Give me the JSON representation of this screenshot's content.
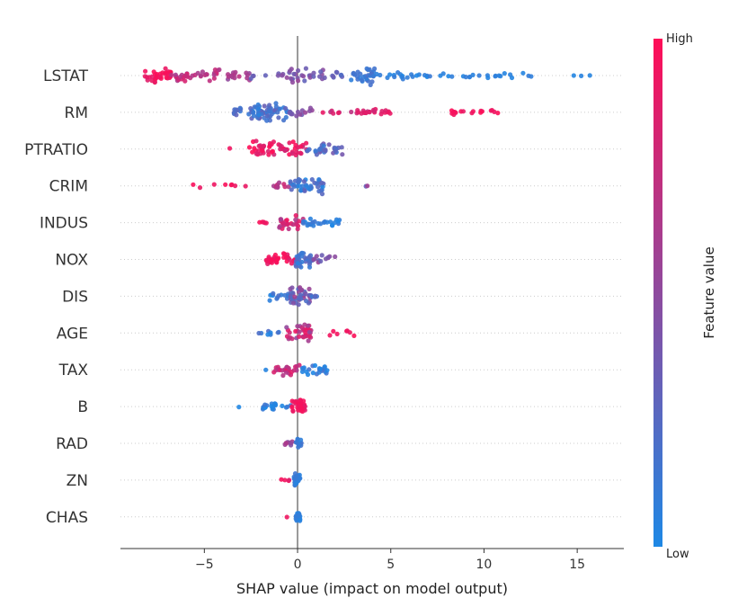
{
  "chart_data": {
    "type": "scatter",
    "subtype": "beeswarm",
    "title": "",
    "xlabel": "SHAP value (impact on model output)",
    "ylabel": "",
    "xlim": [
      -9.5,
      17.5
    ],
    "xticks": [
      -5,
      0,
      5,
      10,
      15
    ],
    "zero_line": true,
    "grid": false,
    "colorbar": {
      "title": "Feature value",
      "high_label": "High",
      "low_label": "Low",
      "low_color": "#1e88e5",
      "high_color": "#ff0d57"
    },
    "features": [
      {
        "name": "LSTAT",
        "clusters": [
          {
            "x": [
              -8.2,
              -6.8
            ],
            "n": 34,
            "v": [
              0.85,
              1.0
            ],
            "spread": 1.0
          },
          {
            "x": [
              -6.8,
              -4.0
            ],
            "n": 36,
            "v": [
              0.6,
              0.85
            ],
            "spread": 0.8
          },
          {
            "x": [
              -4.0,
              -2.5
            ],
            "n": 16,
            "v": [
              0.5,
              0.7
            ],
            "spread": 0.6
          },
          {
            "x": [
              -2.5,
              1.5
            ],
            "n": 36,
            "v": [
              0.3,
              0.55
            ],
            "spread": 0.9
          },
          {
            "x": [
              1.5,
              2.8
            ],
            "n": 8,
            "v": [
              0.2,
              0.35
            ],
            "spread": 0.4
          },
          {
            "x": [
              2.8,
              4.2
            ],
            "n": 30,
            "v": [
              0.05,
              0.2
            ],
            "spread": 1.0
          },
          {
            "x": [
              4.2,
              8.0
            ],
            "n": 22,
            "v": [
              0.0,
              0.12
            ],
            "spread": 0.4
          },
          {
            "x": [
              8.0,
              12.6
            ],
            "n": 20,
            "v": [
              0.0,
              0.1
            ],
            "spread": 0.35
          },
          {
            "x": [
              14.8,
              16.3
            ],
            "n": 3,
            "v": [
              0.0,
              0.05
            ],
            "spread": 0.05
          }
        ]
      },
      {
        "name": "RM",
        "clusters": [
          {
            "x": [
              -3.6,
              -2.5
            ],
            "n": 12,
            "v": [
              0.1,
              0.3
            ],
            "spread": 0.5
          },
          {
            "x": [
              -2.5,
              -0.5
            ],
            "n": 60,
            "v": [
              0.05,
              0.35
            ],
            "spread": 1.0
          },
          {
            "x": [
              -0.5,
              1.0
            ],
            "n": 14,
            "v": [
              0.3,
              0.55
            ],
            "spread": 0.5
          },
          {
            "x": [
              1.0,
              5.2
            ],
            "n": 30,
            "v": [
              0.7,
              0.95
            ],
            "spread": 0.35
          },
          {
            "x": [
              8.0,
              10.8
            ],
            "n": 18,
            "v": [
              0.9,
              1.0
            ],
            "spread": 0.3
          }
        ]
      },
      {
        "name": "PTRATIO",
        "clusters": [
          {
            "x": [
              -3.7,
              -3.5
            ],
            "n": 1,
            "v": [
              0.9,
              1.0
            ],
            "spread": 0.1
          },
          {
            "x": [
              -2.6,
              0.5
            ],
            "n": 58,
            "v": [
              0.75,
              1.0
            ],
            "spread": 1.0
          },
          {
            "x": [
              0.5,
              2.4
            ],
            "n": 30,
            "v": [
              0.1,
              0.4
            ],
            "spread": 0.65
          }
        ]
      },
      {
        "name": "CRIM",
        "clusters": [
          {
            "x": [
              -5.8,
              -2.7
            ],
            "n": 8,
            "v": [
              0.9,
              1.0
            ],
            "spread": 0.25
          },
          {
            "x": [
              -1.3,
              -0.4
            ],
            "n": 10,
            "v": [
              0.6,
              0.9
            ],
            "spread": 0.35
          },
          {
            "x": [
              -0.4,
              1.5
            ],
            "n": 46,
            "v": [
              0.0,
              0.3
            ],
            "spread": 1.0
          },
          {
            "x": [
              2.7,
              4.7
            ],
            "n": 2,
            "v": [
              0.3,
              0.6
            ],
            "spread": 0.1
          }
        ]
      },
      {
        "name": "INDUS",
        "clusters": [
          {
            "x": [
              -2.2,
              -1.5
            ],
            "n": 5,
            "v": [
              0.9,
              1.0
            ],
            "spread": 0.2
          },
          {
            "x": [
              -1.0,
              0.3
            ],
            "n": 26,
            "v": [
              0.6,
              0.95
            ],
            "spread": 0.8
          },
          {
            "x": [
              0.3,
              2.3
            ],
            "n": 26,
            "v": [
              0.0,
              0.15
            ],
            "spread": 0.45
          }
        ]
      },
      {
        "name": "NOX",
        "clusters": [
          {
            "x": [
              -1.7,
              -0.1
            ],
            "n": 34,
            "v": [
              0.85,
              1.0
            ],
            "spread": 0.6
          },
          {
            "x": [
              -0.1,
              0.8
            ],
            "n": 40,
            "v": [
              0.05,
              0.3
            ],
            "spread": 1.0
          },
          {
            "x": [
              0.8,
              2.2
            ],
            "n": 12,
            "v": [
              0.3,
              0.6
            ],
            "spread": 0.45
          }
        ]
      },
      {
        "name": "DIS",
        "clusters": [
          {
            "x": [
              -1.5,
              -0.4
            ],
            "n": 14,
            "v": [
              0.0,
              0.2
            ],
            "spread": 0.5
          },
          {
            "x": [
              -0.4,
              0.7
            ],
            "n": 42,
            "v": [
              0.2,
              0.6
            ],
            "spread": 1.0
          },
          {
            "x": [
              0.7,
              1.1
            ],
            "n": 5,
            "v": [
              0.1,
              0.3
            ],
            "spread": 0.3
          }
        ]
      },
      {
        "name": "AGE",
        "clusters": [
          {
            "x": [
              -2.2,
              -0.6
            ],
            "n": 8,
            "v": [
              0.0,
              0.3
            ],
            "spread": 0.3
          },
          {
            "x": [
              -0.6,
              0.8
            ],
            "n": 36,
            "v": [
              0.5,
              0.95
            ],
            "spread": 1.0
          },
          {
            "x": [
              1.5,
              3.5
            ],
            "n": 7,
            "v": [
              0.9,
              1.0
            ],
            "spread": 0.4
          }
        ]
      },
      {
        "name": "TAX",
        "clusters": [
          {
            "x": [
              -2.0,
              -1.5
            ],
            "n": 1,
            "v": [
              0.0,
              0.1
            ],
            "spread": 0.05
          },
          {
            "x": [
              -1.3,
              0.2
            ],
            "n": 26,
            "v": [
              0.6,
              0.95
            ],
            "spread": 0.7
          },
          {
            "x": [
              0.2,
              1.6
            ],
            "n": 24,
            "v": [
              0.0,
              0.2
            ],
            "spread": 0.5
          }
        ]
      },
      {
        "name": "B",
        "clusters": [
          {
            "x": [
              -3.3,
              -3.1
            ],
            "n": 1,
            "v": [
              0.0,
              0.05
            ],
            "spread": 0.05
          },
          {
            "x": [
              -2.0,
              -0.3
            ],
            "n": 20,
            "v": [
              0.0,
              0.15
            ],
            "spread": 0.4
          },
          {
            "x": [
              -0.3,
              0.4
            ],
            "n": 32,
            "v": [
              0.85,
              1.0
            ],
            "spread": 1.0
          }
        ]
      },
      {
        "name": "RAD",
        "clusters": [
          {
            "x": [
              -0.7,
              -0.1
            ],
            "n": 8,
            "v": [
              0.4,
              0.7
            ],
            "spread": 0.3
          },
          {
            "x": [
              -0.1,
              0.2
            ],
            "n": 14,
            "v": [
              0.0,
              0.2
            ],
            "spread": 0.55
          }
        ]
      },
      {
        "name": "ZN",
        "clusters": [
          {
            "x": [
              -1.0,
              -0.4
            ],
            "n": 4,
            "v": [
              0.8,
              1.0
            ],
            "spread": 0.2
          },
          {
            "x": [
              -0.2,
              0.15
            ],
            "n": 24,
            "v": [
              0.0,
              0.15
            ],
            "spread": 0.7
          }
        ]
      },
      {
        "name": "CHAS",
        "clusters": [
          {
            "x": [
              -0.7,
              -0.5
            ],
            "n": 1,
            "v": [
              0.9,
              1.0
            ],
            "spread": 0.05
          },
          {
            "x": [
              -0.1,
              0.15
            ],
            "n": 22,
            "v": [
              0.0,
              0.1
            ],
            "spread": 0.6
          }
        ]
      }
    ]
  }
}
